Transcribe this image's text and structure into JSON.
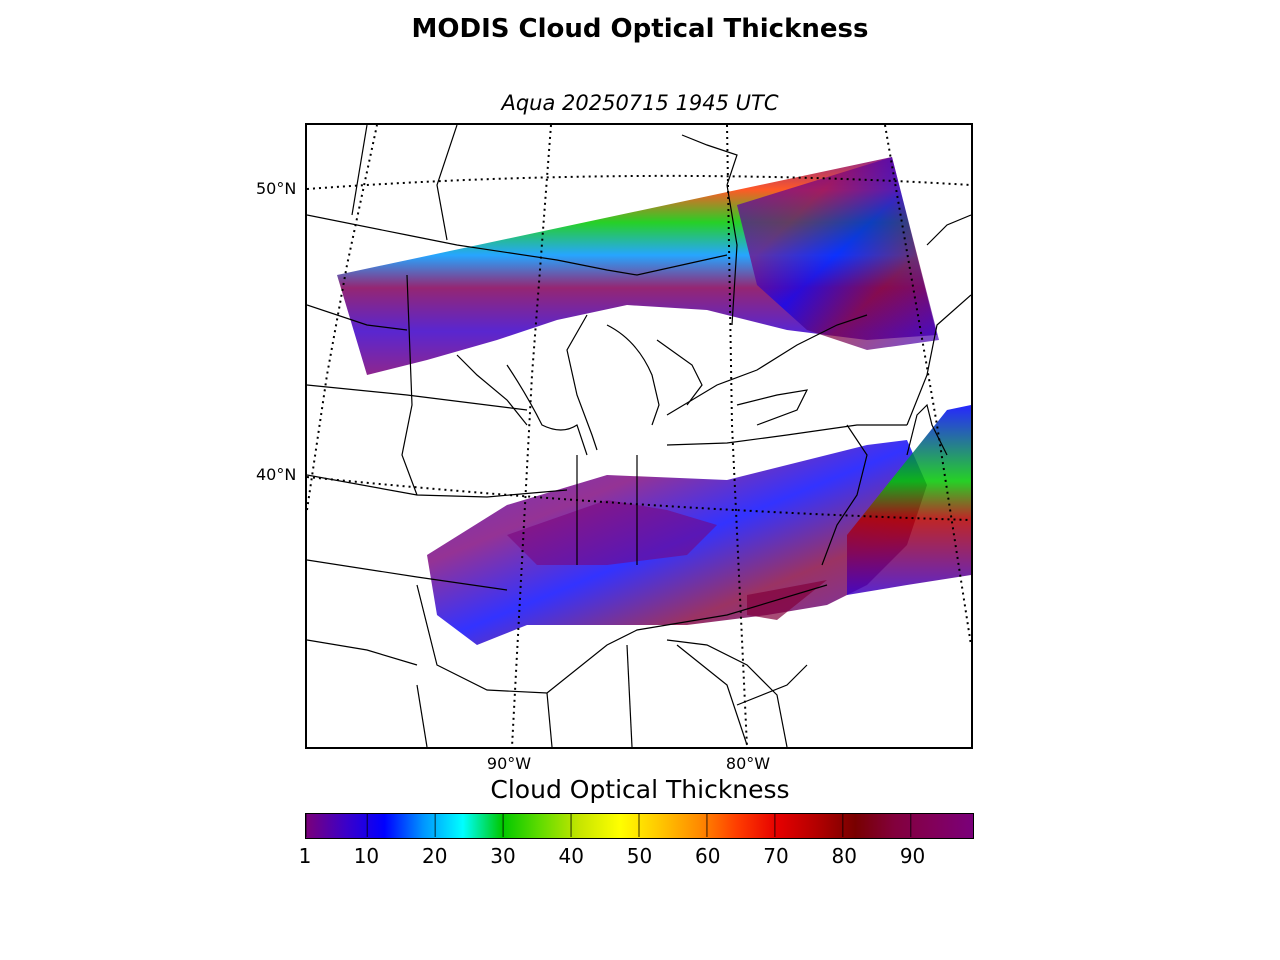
{
  "title": "MODIS Cloud Optical Thickness",
  "subtitle": "Aqua 20250715 1945 UTC",
  "map": {
    "lat_labels": [
      "50°N",
      "40°N"
    ],
    "lon_labels": [
      "90°W",
      "80°W"
    ]
  },
  "colorbar": {
    "title": "Cloud Optical Thickness",
    "min": 1,
    "max": 99,
    "tick_values": [
      1,
      10,
      20,
      30,
      40,
      50,
      60,
      70,
      80,
      90
    ],
    "tick_labels": [
      "1",
      "10",
      "20",
      "30",
      "40",
      "50",
      "60",
      "70",
      "80",
      "90"
    ],
    "colors": [
      "#7a007a",
      "#3c00c8",
      "#0000ff",
      "#0096ff",
      "#00ffff",
      "#00c800",
      "#64dc00",
      "#c8e600",
      "#ffff00",
      "#ffc800",
      "#ff8c00",
      "#ff3c00",
      "#e60000",
      "#b40000",
      "#780000",
      "#82003c",
      "#82005a",
      "#7a007a"
    ]
  }
}
